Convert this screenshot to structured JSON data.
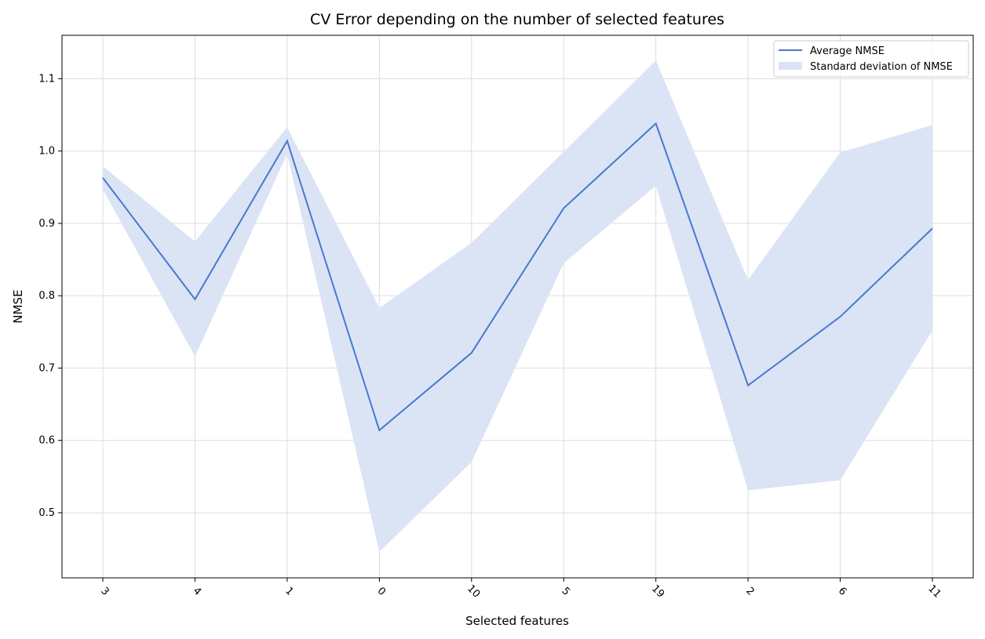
{
  "chart_data": {
    "type": "line",
    "title": "CV Error depending on the number of selected features",
    "xlabel": "Selected features",
    "ylabel": "NMSE",
    "categories": [
      "3",
      "4",
      "1",
      "0",
      "10",
      "5",
      "19",
      "2",
      "6",
      "11"
    ],
    "series": [
      {
        "name": "Average NMSE",
        "values": [
          0.963,
          0.795,
          1.014,
          0.614,
          0.721,
          0.921,
          1.038,
          0.676,
          0.771,
          0.893
        ],
        "color": "#4878cf"
      }
    ],
    "band": {
      "name": "Standard deviation of NMSE",
      "lower": [
        0.947,
        0.716,
        0.996,
        0.446,
        0.57,
        0.845,
        0.952,
        0.531,
        0.545,
        0.752
      ],
      "upper": [
        0.979,
        0.875,
        1.033,
        0.783,
        0.873,
        0.999,
        1.125,
        0.822,
        0.998,
        1.036
      ],
      "color": "#dbe4f5"
    },
    "y_ticks": [
      "0.5",
      "0.6",
      "0.7",
      "0.8",
      "0.9",
      "1.0",
      "1.1"
    ],
    "ylim": [
      0.41,
      1.16
    ],
    "grid": true,
    "legend_position": "top-right"
  }
}
